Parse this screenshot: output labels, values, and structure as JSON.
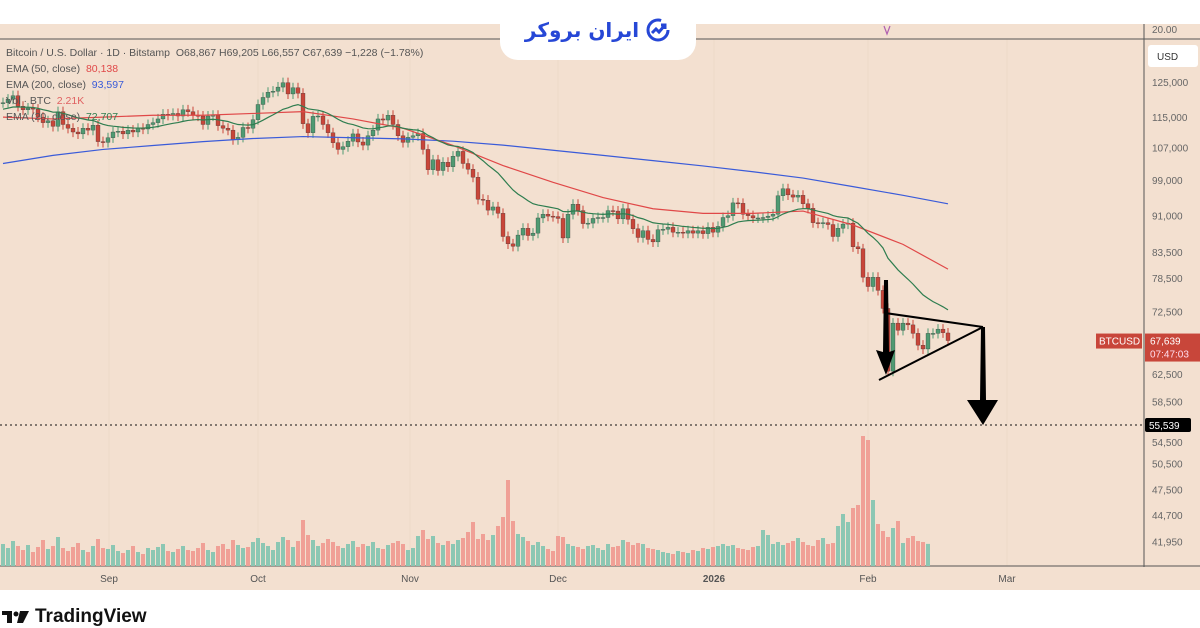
{
  "legend": {
    "symbol": "Bitcoin / U.S. Dollar · 1D · Bitstamp",
    "ohlc": "O68,867  H69,205  L66,557  C67,639  −1,228 (−1.78%)",
    "ema50_label": "EMA (50, close)",
    "ema50_value": "80,138",
    "ema200_label": "EMA (200, close)",
    "ema200_value": "93,597",
    "vol_label": "Vol · BTC",
    "vol_value": "2.21K",
    "ema20_label": "EMA (20, close)",
    "ema20_value": "72,707"
  },
  "brand": {
    "name": "ایران بروکر",
    "footer": "TradingView"
  },
  "axis": {
    "currency": "USD",
    "top_pane_label": "20.00",
    "price_labels": [
      "125,000",
      "115,000",
      "107,000",
      "99,000",
      "91,000",
      "83,500",
      "78,500",
      "72,500",
      "62,500",
      "58,500",
      "54,500",
      "50,500",
      "47,500",
      "44,700",
      "41,950"
    ],
    "current_symbol": "BTCUSD",
    "current_price": "67,639",
    "countdown": "07:47:03",
    "target_price": "55,539",
    "time_labels": [
      "Sep",
      "Oct",
      "Nov",
      "Dec",
      "2026",
      "Feb",
      "Mar"
    ]
  },
  "colors": {
    "bg": "#f3e0d0",
    "up": "#4f9a72",
    "down": "#c8463a",
    "up_vol": "#8cc7b3",
    "down_vol": "#f0a096",
    "ema20": "#2e7d4f",
    "ema50": "#e04848",
    "ema200": "#3a5bd9",
    "brand": "#2647d6"
  },
  "chart_data": {
    "type": "candlestick",
    "title": "Bitcoin / U.S. Dollar · 1D · Bitstamp",
    "start_date": "2025-08-11",
    "y_scale": "log",
    "ylim": [
      40000,
      135000
    ],
    "open_last": 68867,
    "closes": [
      119,
      120,
      121,
      118,
      117,
      117.5,
      117.2,
      115,
      113.5,
      114,
      112.5,
      116.5,
      113,
      112,
      111,
      110.5,
      112,
      111.5,
      112.8,
      108.5,
      108.3,
      109.5,
      111,
      111.2,
      110.5,
      111.5,
      111,
      112,
      111.8,
      113,
      113.5,
      114.5,
      115.8,
      115.5,
      116,
      115.3,
      117,
      116.5,
      115.5,
      115.3,
      113,
      115.3,
      115.5,
      112.7,
      112,
      111.5,
      109,
      109.6,
      112.2,
      112,
      114.3,
      118.5,
      120.5,
      122,
      122.3,
      123.5,
      124.8,
      121.5,
      123.3,
      121.7,
      113.2,
      110.8,
      115.2,
      115.3,
      113,
      110.8,
      108.2,
      106.5,
      107.2,
      108.6,
      110.5,
      108.4,
      107.6,
      110,
      111.5,
      114.5,
      114.2,
      115.5,
      113,
      110,
      108.3,
      109.6,
      110,
      110.6,
      106.5,
      101.5,
      103.9,
      101.3,
      103.3,
      102.2,
      104.8,
      106,
      103,
      101.6,
      99.7,
      94.6,
      94.4,
      92.2,
      92.9,
      91.5,
      86.6,
      85.1,
      84.6,
      86.9,
      88.3,
      86.8,
      87.3,
      90.5,
      91.3,
      90.9,
      90.8,
      90.4,
      86.3,
      91.3,
      93.5,
      92.1,
      89.3,
      89.4,
      90.4,
      90.6,
      90.6,
      92.1,
      92,
      90.3,
      92.5,
      90.2,
      88.2,
      86.4,
      87.8,
      86,
      85.5,
      88,
      88.1,
      88.5,
      87.5,
      87.5,
      87.3,
      87.8,
      87.3,
      87.8,
      87.2,
      88.5,
      87.5,
      88.7,
      90.6,
      91,
      93.8,
      93.7,
      91.3,
      91,
      90.5,
      90.5,
      90.6,
      90.9,
      91.3,
      95.4,
      97,
      95.6,
      95.1,
      95.5,
      93.6,
      92.6,
      89.5,
      89.4,
      89.5,
      89.1,
      86.6,
      88.3,
      89.2,
      89.4,
      84.5,
      84.1,
      78.6,
      76.9,
      78.6,
      76.2,
      73,
      62.9,
      70.5,
      69.3,
      70.5,
      70.2,
      68.8,
      66.9,
      66.3,
      68.8,
      68.8,
      69.5,
      68.9,
      67.639
    ],
    "close_units": "thousand USD",
    "volume_k_btc": [
      2.2,
      1.8,
      2.5,
      2.0,
      1.6,
      2.1,
      1.4,
      1.9,
      2.6,
      1.7,
      2.0,
      2.9,
      1.8,
      1.5,
      1.9,
      2.3,
      1.6,
      1.4,
      2.0,
      2.7,
      1.8,
      1.7,
      2.1,
      1.5,
      1.3,
      1.6,
      2.0,
      1.4,
      1.2,
      1.8,
      1.6,
      1.9,
      2.2,
      1.5,
      1.4,
      1.7,
      2.0,
      1.6,
      1.5,
      1.8,
      2.3,
      1.6,
      1.4,
      2.0,
      2.2,
      1.7,
      2.6,
      2.1,
      1.8,
      1.9,
      2.4,
      2.8,
      2.3,
      2.0,
      1.6,
      2.4,
      2.9,
      2.6,
      1.9,
      2.5,
      4.6,
      3.1,
      2.6,
      2.0,
      2.3,
      2.7,
      2.4,
      2.0,
      1.8,
      2.2,
      2.5,
      1.9,
      2.2,
      2.0,
      2.4,
      1.8,
      1.7,
      2.1,
      2.3,
      2.5,
      2.2,
      1.6,
      1.8,
      3.0,
      3.6,
      2.7,
      3.0,
      2.3,
      2.1,
      2.5,
      2.2,
      2.6,
      2.8,
      3.4,
      4.4,
      2.7,
      3.2,
      2.6,
      3.1,
      4.0,
      4.9,
      8.6,
      4.5,
      3.2,
      2.9,
      2.5,
      2.1,
      2.4,
      2.0,
      1.7,
      1.5,
      3.0,
      2.9,
      2.2,
      2.0,
      1.9,
      1.7,
      2.0,
      2.1,
      1.8,
      1.6,
      2.2,
      1.9,
      2.0,
      2.6,
      2.4,
      2.1,
      2.3,
      2.2,
      1.8,
      1.7,
      1.6,
      1.4,
      1.3,
      1.2,
      1.5,
      1.4,
      1.3,
      1.6,
      1.5,
      1.8,
      1.7,
      1.9,
      2.0,
      2.2,
      2.0,
      2.1,
      1.8,
      1.7,
      1.6,
      1.9,
      2.0,
      3.6,
      3.1,
      2.2,
      2.4,
      2.1,
      2.3,
      2.5,
      2.8,
      2.4,
      2.1,
      2.0,
      2.6,
      2.8,
      2.2,
      2.3,
      4.0,
      5.2,
      4.4,
      5.8,
      6.1,
      13.0,
      12.6,
      6.6,
      4.2,
      3.5,
      2.9,
      3.8,
      4.5,
      2.3,
      2.8,
      3.0,
      2.5,
      2.4,
      2.21
    ],
    "ema50": [
      115000,
      114500,
      115000,
      115500,
      115500,
      116000,
      116500,
      114500,
      112000,
      107500,
      102500,
      98500,
      95000,
      92500,
      91500,
      91500,
      92000,
      89000,
      85000,
      80138
    ],
    "ema200": [
      103000,
      105000,
      106500,
      107500,
      108500,
      109300,
      109800,
      109500,
      109200,
      108600,
      107600,
      106300,
      105000,
      103700,
      102400,
      101000,
      99500,
      97500,
      95500,
      93597
    ],
    "ema_sample_step_days": 10,
    "ema20_last": 72707,
    "annotation": {
      "pattern": "bearish pennant",
      "target": 55539
    }
  }
}
